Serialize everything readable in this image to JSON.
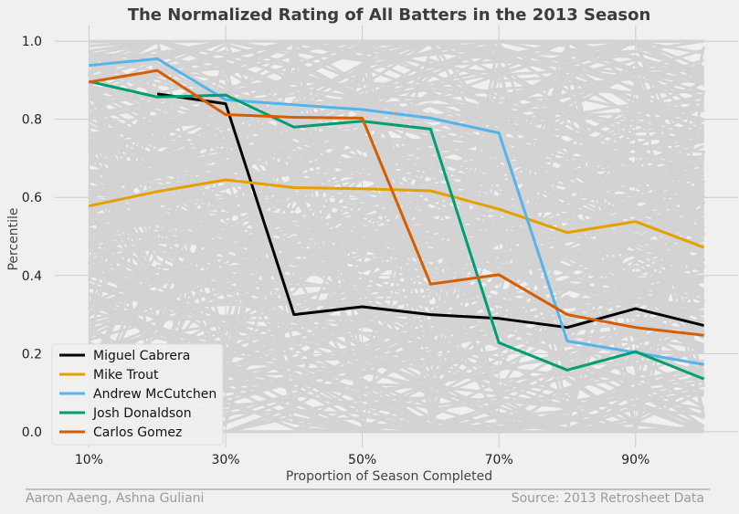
{
  "chart_data": {
    "type": "line",
    "title": "The Normalized Rating of All Batters in the 2013 Season",
    "xlabel": "Proportion of Season Completed",
    "ylabel": "Percentile",
    "x": [
      10,
      20,
      30,
      40,
      50,
      60,
      70,
      80,
      90,
      100
    ],
    "xlim": [
      5,
      105
    ],
    "ylim": [
      -0.04,
      1.04
    ],
    "x_ticks": [
      10,
      30,
      50,
      70,
      90
    ],
    "x_tick_labels": [
      "10%",
      "30%",
      "50%",
      "70%",
      "90%"
    ],
    "y_ticks": [
      0.0,
      0.2,
      0.4,
      0.6,
      0.8,
      1.0
    ],
    "y_tick_labels": [
      "0.0",
      "0.2",
      "0.4",
      "0.6",
      "0.8",
      "1.0"
    ],
    "grid": true,
    "legend_position": "bottom-left",
    "background_series_color": "#d3d3d3",
    "series": [
      {
        "name": "Miguel Cabrera",
        "color": "#000000",
        "values": [
          null,
          0.865,
          0.84,
          0.3,
          0.32,
          0.3,
          0.29,
          0.267,
          0.315,
          0.272
        ]
      },
      {
        "name": "Mike Trout",
        "color": "#e5a000",
        "values": [
          0.578,
          0.615,
          0.645,
          0.625,
          0.622,
          0.617,
          0.57,
          0.51,
          0.538,
          0.472
        ]
      },
      {
        "name": "Andrew McCutchen",
        "color": "#56b4e9",
        "values": [
          0.938,
          0.955,
          0.85,
          0.837,
          0.825,
          0.803,
          0.765,
          0.232,
          0.203,
          0.172
        ]
      },
      {
        "name": "Josh Donaldson",
        "color": "#009e73",
        "values": [
          0.897,
          0.857,
          0.862,
          0.78,
          0.795,
          0.775,
          0.228,
          0.158,
          0.205,
          0.135
        ]
      },
      {
        "name": "Carlos Gomez",
        "color": "#d55e00",
        "values": [
          0.895,
          0.925,
          0.812,
          0.805,
          0.803,
          0.378,
          0.402,
          0.3,
          0.267,
          0.247
        ]
      }
    ]
  },
  "footer": {
    "credit": "Aaron Aaeng, Ashna Guliani",
    "source": "Source: 2013 Retrosheet Data"
  }
}
